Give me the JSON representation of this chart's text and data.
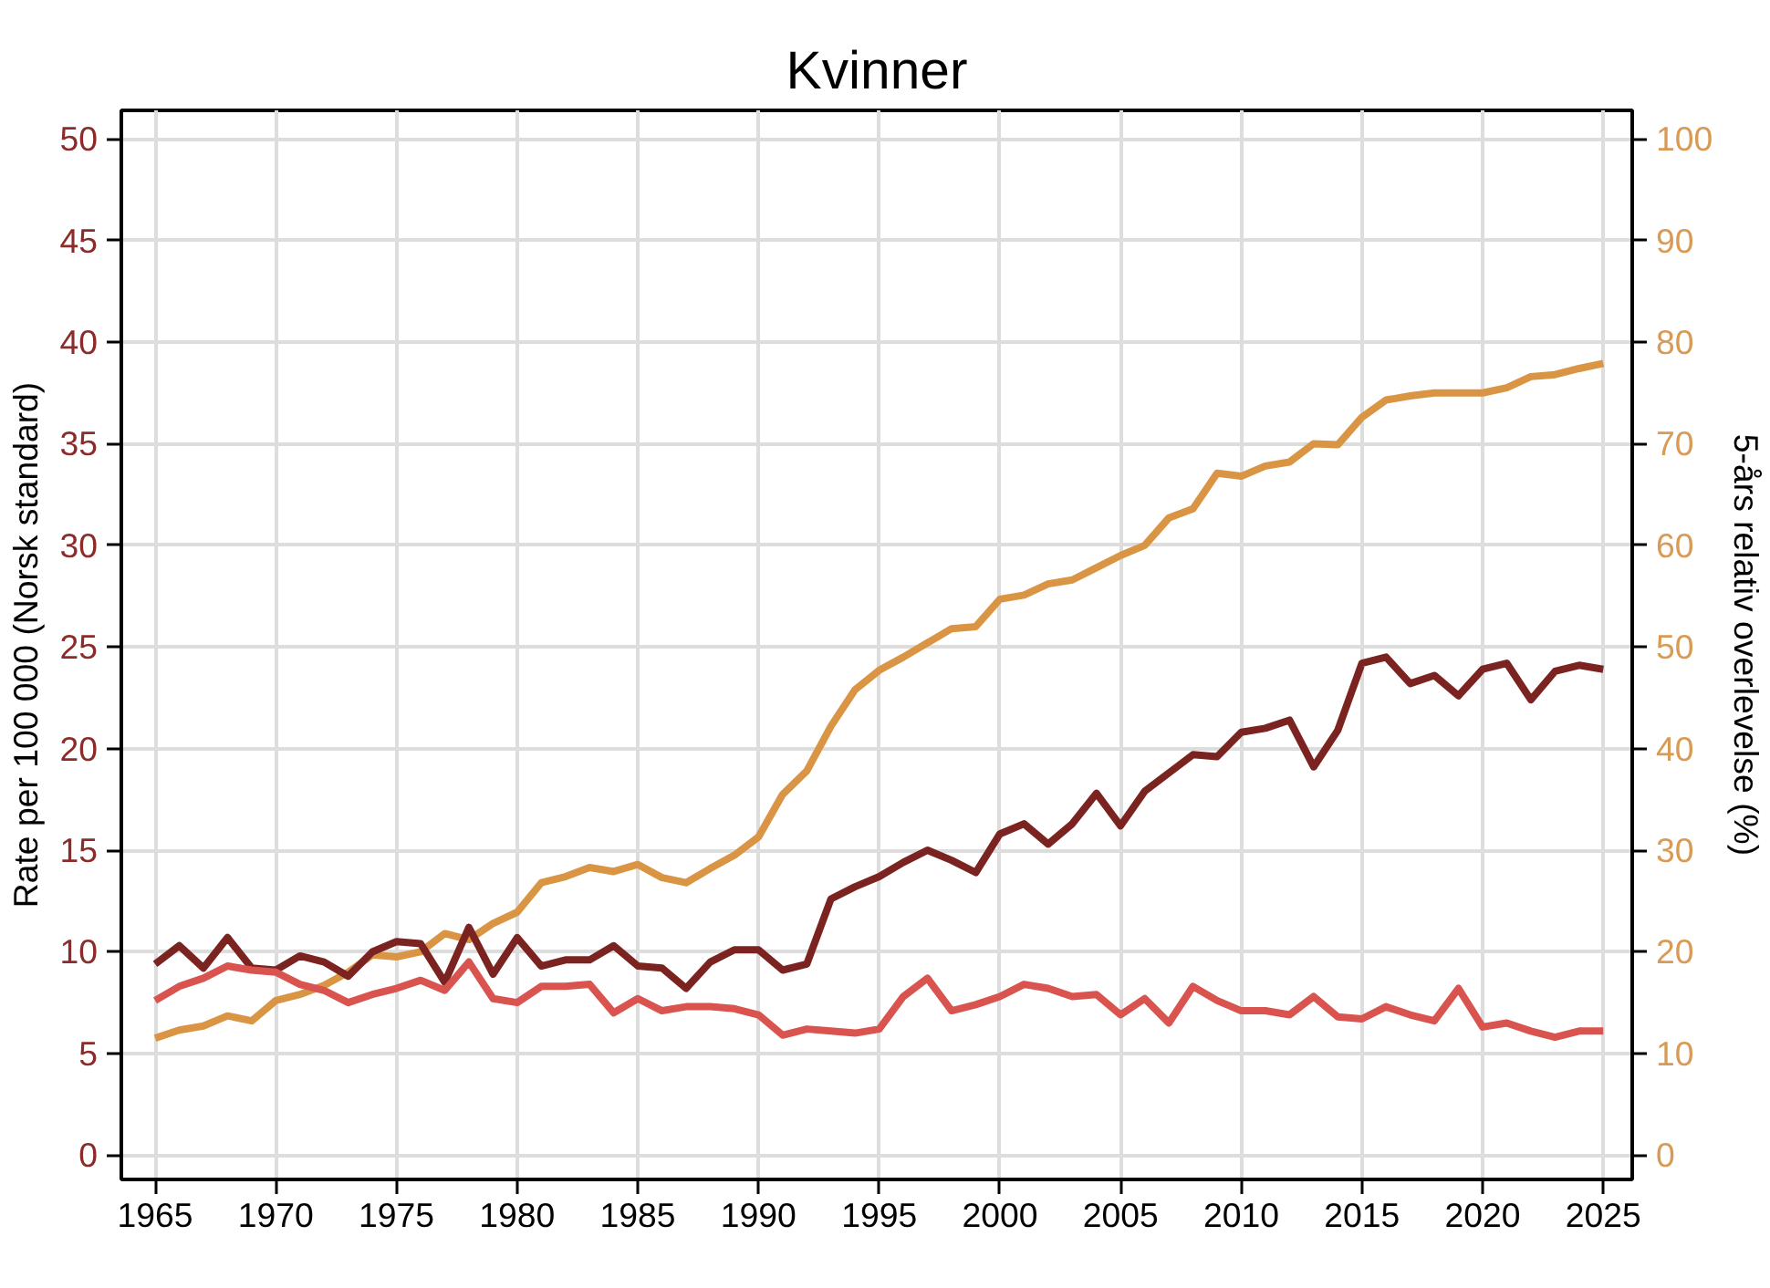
{
  "chart_data": {
    "type": "line",
    "title": "Kvinner",
    "ylabel": "Rate per 100 000 (Norsk standard)",
    "y2label": "5-års relativ overlevelse (%)",
    "x": [
      1965,
      1966,
      1967,
      1968,
      1969,
      1970,
      1971,
      1972,
      1973,
      1974,
      1975,
      1976,
      1977,
      1978,
      1979,
      1980,
      1981,
      1982,
      1983,
      1984,
      1985,
      1986,
      1987,
      1988,
      1989,
      1990,
      1991,
      1992,
      1993,
      1994,
      1995,
      1996,
      1997,
      1998,
      1999,
      2000,
      2001,
      2002,
      2003,
      2004,
      2005,
      2006,
      2007,
      2008,
      2009,
      2010,
      2011,
      2012,
      2013,
      2014,
      2015,
      2016,
      2017,
      2018,
      2019,
      2020,
      2021,
      2022,
      2023,
      2024,
      2025
    ],
    "series": [
      {
        "color": "#d99543",
        "axis": "y2",
        "values": [
          11.5,
          12.3,
          12.7,
          13.7,
          13.2,
          15.2,
          15.8,
          16.7,
          18.0,
          19.7,
          19.5,
          20.0,
          21.8,
          21.2,
          22.8,
          23.9,
          26.8,
          27.4,
          28.3,
          27.9,
          28.6,
          27.3,
          26.8,
          28.2,
          29.5,
          31.3,
          35.5,
          37.8,
          42.2,
          45.8,
          47.7,
          49.0,
          50.4,
          51.8,
          52.0,
          54.7,
          55.1,
          56.2,
          56.6,
          57.8,
          59.0,
          60.0,
          62.7,
          63.6,
          67.1,
          66.8,
          67.8,
          68.2,
          70.0,
          69.9,
          72.6,
          74.3,
          74.7,
          75.0,
          75.0,
          75.0,
          75.5,
          76.6,
          76.8,
          77.4,
          77.9
        ]
      },
      {
        "color": "#7b2320",
        "values": [
          9.4,
          10.3,
          9.2,
          10.7,
          9.2,
          9.1,
          9.8,
          9.5,
          8.8,
          10.0,
          10.5,
          10.4,
          8.5,
          11.2,
          8.9,
          10.7,
          9.3,
          9.6,
          9.6,
          10.3,
          9.3,
          9.2,
          8.2,
          9.5,
          10.1,
          10.1,
          9.1,
          9.4,
          12.6,
          13.2,
          13.7,
          14.4,
          15.0,
          14.5,
          13.9,
          15.8,
          16.3,
          15.3,
          16.3,
          17.8,
          16.2,
          17.9,
          18.8,
          19.7,
          19.6,
          20.8,
          21.0,
          21.4,
          19.1,
          20.9,
          24.2,
          24.5,
          23.2,
          23.6,
          22.6,
          23.9,
          24.2,
          22.4,
          23.8,
          24.1,
          23.9
        ]
      },
      {
        "color": "#d9534f",
        "values": [
          7.6,
          8.3,
          8.7,
          9.3,
          9.1,
          9.0,
          8.4,
          8.1,
          7.5,
          7.9,
          8.2,
          8.6,
          8.1,
          9.5,
          7.7,
          7.5,
          8.3,
          8.3,
          8.4,
          7.0,
          7.7,
          7.1,
          7.3,
          7.3,
          7.2,
          6.9,
          5.9,
          6.2,
          6.1,
          6.0,
          6.2,
          7.8,
          8.7,
          7.1,
          7.4,
          7.8,
          8.4,
          8.2,
          7.8,
          7.9,
          6.9,
          7.7,
          6.5,
          8.3,
          7.6,
          7.1,
          7.1,
          6.9,
          7.8,
          6.8,
          6.7,
          7.3,
          6.9,
          6.6,
          8.2,
          6.3,
          6.5,
          6.1,
          5.8,
          6.1,
          6.1
        ]
      }
    ],
    "xlim": [
      1963.6,
      2026.2
    ],
    "xticks": [
      1965,
      1970,
      1975,
      1980,
      1985,
      1990,
      1995,
      2000,
      2005,
      2010,
      2015,
      2020,
      2025
    ],
    "ylim": [
      -1.2,
      51.4
    ],
    "yticks": [
      0,
      5,
      10,
      15,
      20,
      25,
      30,
      35,
      40,
      45,
      50
    ],
    "y2lim": [
      -2.4,
      102.8
    ],
    "y2ticks": [
      0,
      10,
      20,
      30,
      40,
      50,
      60,
      70,
      80,
      90,
      100
    ],
    "grid": true,
    "marker": "none",
    "line_style": "solid"
  }
}
